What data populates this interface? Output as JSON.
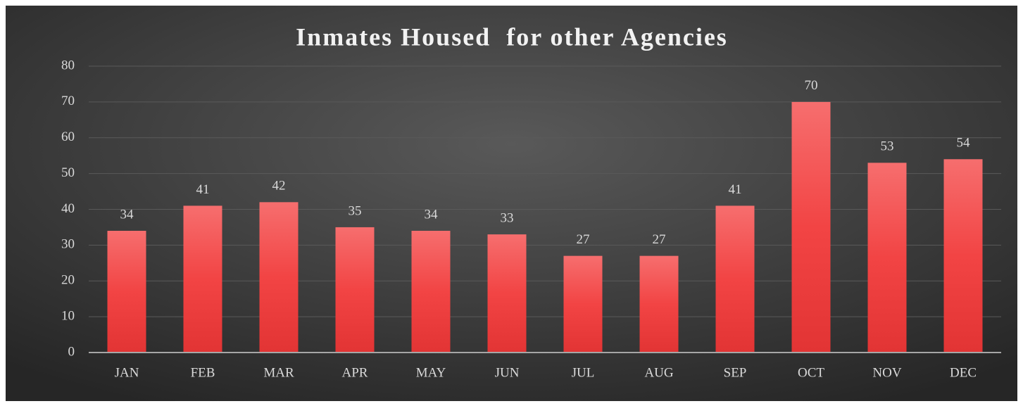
{
  "chart_data": {
    "type": "bar",
    "title": "Inmates Housed  for other Agencies",
    "categories": [
      "JAN",
      "FEB",
      "MAR",
      "APR",
      "MAY",
      "JUN",
      "JUL",
      "AUG",
      "SEP",
      "OCT",
      "NOV",
      "DEC"
    ],
    "values": [
      34,
      41,
      42,
      35,
      34,
      33,
      27,
      27,
      41,
      70,
      53,
      54
    ],
    "color": "#f04848",
    "ylim": [
      0,
      80
    ],
    "yticks": [
      0,
      10,
      20,
      30,
      40,
      50,
      60,
      70,
      80
    ],
    "grid": true
  }
}
